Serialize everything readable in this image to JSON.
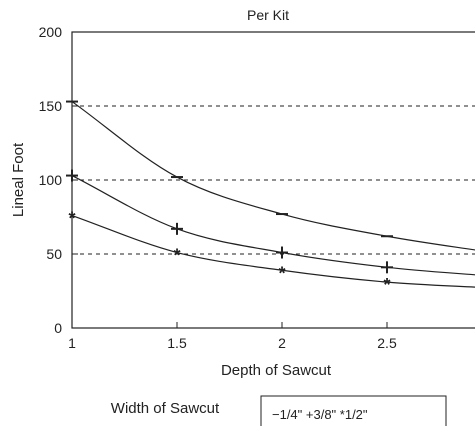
{
  "chart_data": {
    "type": "line",
    "title": "Per Kit",
    "xlabel": "Depth of Sawcut",
    "ylabel": "Lineal Foot",
    "x": [
      1,
      1.5,
      2,
      2.5,
      3
    ],
    "xticks": [
      "1",
      "1.5",
      "2",
      "2.5"
    ],
    "yticks": [
      "0",
      "50",
      "100",
      "150",
      "200"
    ],
    "xlim": [
      1,
      3
    ],
    "ylim": [
      0,
      200
    ],
    "reference_lines": [
      50,
      100,
      150
    ],
    "series": [
      {
        "name": "1/4\"",
        "marker": "−",
        "values": [
          153,
          102,
          77,
          62,
          51
        ]
      },
      {
        "name": "3/8\"",
        "marker": "+",
        "values": [
          103,
          67,
          51,
          41,
          35
        ]
      },
      {
        "name": "1/2\"",
        "marker": "*",
        "values": [
          76,
          51,
          39,
          31,
          27
        ]
      }
    ],
    "legend": {
      "title": "Width of Sawcut",
      "text": "−1/4\" +3/8\" *1/2\"",
      "position": "bottom"
    },
    "colors": {
      "line": "#222222",
      "reference": "#222222",
      "background": "#ffffff"
    }
  }
}
